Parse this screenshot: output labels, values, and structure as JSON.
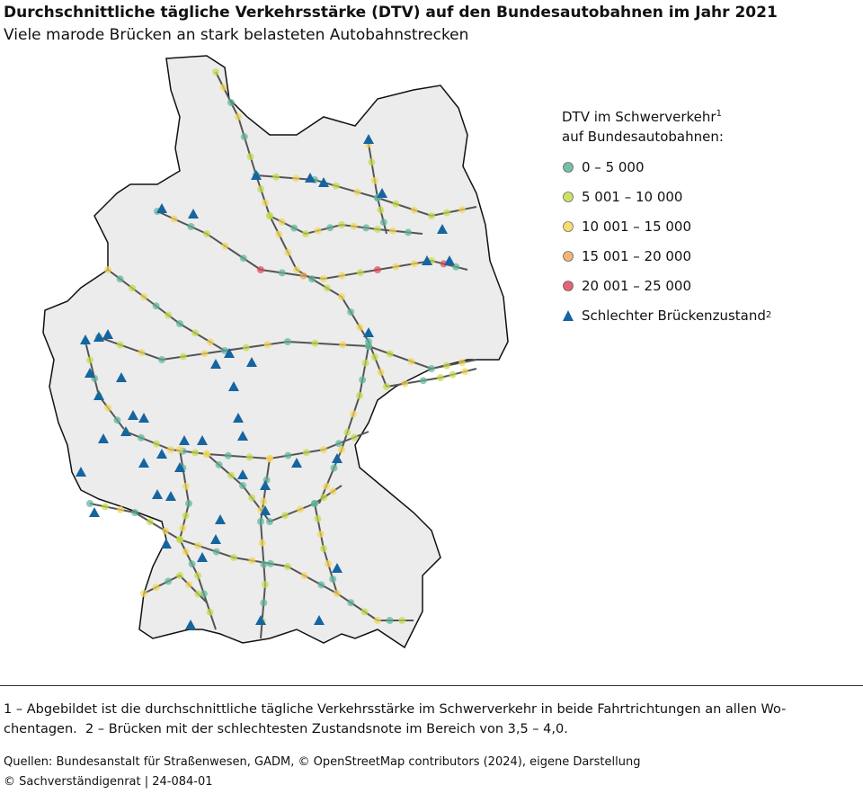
{
  "header": {
    "title": "Durchschnittliche tägliche Verkehrsstärke (DTV) auf den Bundesautobahnen im Jahr 2021",
    "subtitle": "Viele marode Brücken an stark belasteten Autobahnstrecken"
  },
  "legend": {
    "title": {
      "text": "DTV im Schwerverkehr",
      "sup": "1",
      "rest": " auf Bundesautobahnen:"
    },
    "items": [
      {
        "label": "0 – 5 000",
        "color": "#5fb39a",
        "shape": "circle"
      },
      {
        "label": "5 001 – 10 000",
        "color": "#c6dc4a",
        "shape": "circle"
      },
      {
        "label": "10 001 – 15 000",
        "color": "#f4d75a",
        "shape": "circle"
      },
      {
        "label": "15 001 – 20 000",
        "color": "#f0a85a",
        "shape": "circle"
      },
      {
        "label": "20 001 – 25 000",
        "color": "#e0485a",
        "shape": "circle"
      },
      {
        "label": "Schlechter Brückenzustand",
        "sup": "2",
        "color": "#1565a0",
        "shape": "triangle"
      }
    ]
  },
  "footnotes": [
    "1 – Abgebildet ist die durchschnittliche tägliche Verkehrsstärke im Schwerverkehr in beide Fahrtrichtungen an allen Wo-chentagen.",
    "2 – Brücken mit der schlechtesten Zustandsnote im Bereich von 3,5 – 4,0."
  ],
  "sources": "Quellen: Bundesanstalt für Straßenwesen, GADM, © OpenStreetMap contributors (2024), eigene Darstellung",
  "copyright": "© Sachverständigenrat | 24-084-01"
}
